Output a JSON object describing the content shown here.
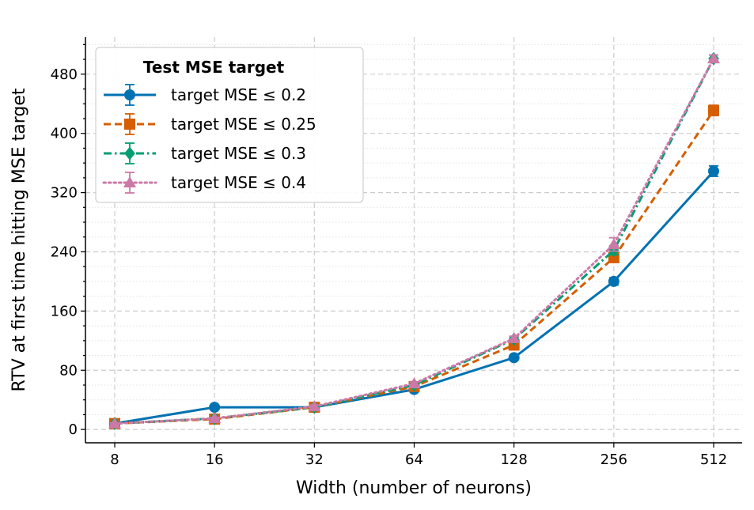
{
  "chart_data": {
    "type": "line",
    "xlabel": "Width (number of neurons)",
    "ylabel": "RTV at first time hitting MSE target",
    "x_scale": "log2",
    "x": [
      8,
      16,
      32,
      64,
      128,
      256,
      512
    ],
    "x_tick_labels": [
      "8",
      "16",
      "32",
      "64",
      "128",
      "256",
      "512"
    ],
    "y_ticks": [
      0,
      80,
      160,
      240,
      320,
      400,
      480
    ],
    "y_tick_labels": [
      "0",
      "80",
      "160",
      "240",
      "320",
      "400",
      "480"
    ],
    "ylim": [
      -18,
      530
    ],
    "grid": true,
    "legend": {
      "title": "Test MSE target",
      "position": "top-left"
    },
    "series": [
      {
        "name": "target MSE ≤ 0.2",
        "color": "#0072B2",
        "marker": "circle",
        "dash": "solid",
        "values": [
          8,
          30,
          30,
          54,
          97,
          200,
          349
        ],
        "errors": [
          1,
          1,
          2,
          2,
          3,
          5,
          7
        ]
      },
      {
        "name": "target MSE ≤ 0.25",
        "color": "#D55E00",
        "marker": "square",
        "dash": "dashed",
        "values": [
          8,
          14,
          30,
          58,
          114,
          232,
          431
        ],
        "errors": [
          1,
          1,
          2,
          2,
          3,
          6,
          7
        ]
      },
      {
        "name": "target MSE ≤ 0.3",
        "color": "#009E73",
        "marker": "diamond",
        "dash": "dashdot",
        "values": [
          8,
          15,
          30,
          60,
          122,
          242,
          501
        ],
        "errors": [
          1,
          1,
          2,
          2,
          3,
          6,
          5
        ]
      },
      {
        "name": "target MSE ≤ 0.4",
        "color": "#CC79A7",
        "marker": "triangle",
        "dash": "dotted",
        "values": [
          8,
          15,
          31,
          62,
          123,
          250,
          501
        ],
        "errors": [
          1,
          1,
          2,
          2,
          3,
          9,
          5
        ]
      }
    ]
  }
}
